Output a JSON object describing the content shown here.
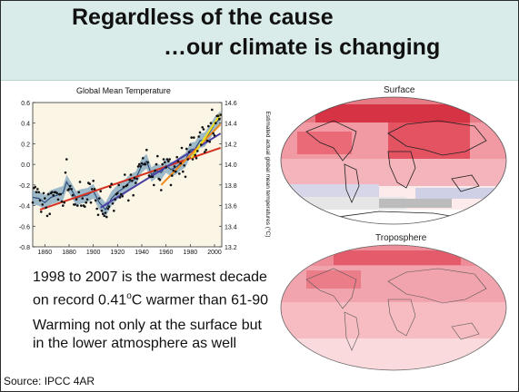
{
  "slide": {
    "title_line1": "Regardless of the cause",
    "title_line2": "…our climate is changing",
    "body_lines": [
      "1998 to 2007 is the warmest decade",
      "on record 0.41",
      "o",
      "C warmer than 61-90",
      "Warming not only at the surface but",
      "in the lower atmosphere as well"
    ],
    "source": "Source: IPCC 4AR",
    "map_surface_label": "Surface",
    "map_troposphere_label": "Troposphere"
  },
  "chart_data": {
    "type": "line",
    "title": "Global Mean Temperature",
    "xlabel": "",
    "ylabel_left": "",
    "ylabel_right": "Estimated actual global mean temperatures (°C)",
    "xlim": [
      1850,
      2006
    ],
    "ylim": [
      -0.8,
      0.6
    ],
    "x_ticks": [
      1860,
      1880,
      1900,
      1920,
      1940,
      1960,
      1980,
      2000
    ],
    "y_ticks_left": [
      "0.6",
      "0.4",
      "0.2",
      "0.0",
      "-0.2",
      "-0.4",
      "-0.6",
      "-0.8"
    ],
    "y_ticks_right": [
      "14.6",
      "14.4",
      "14.2",
      "14.0",
      "13.8",
      "13.6",
      "13.4",
      "13.2"
    ],
    "band_color": "#7fa4be",
    "annual_points": [
      [
        1850,
        -0.37
      ],
      [
        1851,
        -0.23
      ],
      [
        1852,
        -0.22
      ],
      [
        1853,
        -0.27
      ],
      [
        1854,
        -0.24
      ],
      [
        1855,
        -0.27
      ],
      [
        1856,
        -0.35
      ],
      [
        1857,
        -0.46
      ],
      [
        1858,
        -0.39
      ],
      [
        1859,
        -0.28
      ],
      [
        1860,
        -0.33
      ],
      [
        1861,
        -0.42
      ],
      [
        1862,
        -0.5
      ],
      [
        1863,
        -0.29
      ],
      [
        1864,
        -0.48
      ],
      [
        1865,
        -0.28
      ],
      [
        1866,
        -0.27
      ],
      [
        1867,
        -0.3
      ],
      [
        1868,
        -0.27
      ],
      [
        1869,
        -0.27
      ],
      [
        1870,
        -0.28
      ],
      [
        1871,
        -0.34
      ],
      [
        1872,
        -0.29
      ],
      [
        1873,
        -0.29
      ],
      [
        1874,
        -0.36
      ],
      [
        1875,
        -0.4
      ],
      [
        1876,
        -0.37
      ],
      [
        1877,
        -0.08
      ],
      [
        1878,
        0.05
      ],
      [
        1879,
        -0.25
      ],
      [
        1880,
        -0.24
      ],
      [
        1881,
        -0.21
      ],
      [
        1882,
        -0.24
      ],
      [
        1883,
        -0.3
      ],
      [
        1884,
        -0.39
      ],
      [
        1885,
        -0.39
      ],
      [
        1886,
        -0.34
      ],
      [
        1887,
        -0.4
      ],
      [
        1888,
        -0.27
      ],
      [
        1889,
        -0.17
      ],
      [
        1890,
        -0.4
      ],
      [
        1891,
        -0.33
      ],
      [
        1892,
        -0.4
      ],
      [
        1893,
        -0.41
      ],
      [
        1894,
        -0.37
      ],
      [
        1895,
        -0.34
      ],
      [
        1896,
        -0.18
      ],
      [
        1897,
        -0.19
      ],
      [
        1898,
        -0.37
      ],
      [
        1899,
        -0.24
      ],
      [
        1900,
        -0.16
      ],
      [
        1901,
        -0.24
      ],
      [
        1902,
        -0.35
      ],
      [
        1903,
        -0.43
      ],
      [
        1904,
        -0.49
      ],
      [
        1905,
        -0.33
      ],
      [
        1906,
        -0.26
      ],
      [
        1907,
        -0.45
      ],
      [
        1908,
        -0.48
      ],
      [
        1909,
        -0.5
      ],
      [
        1910,
        -0.47
      ],
      [
        1911,
        -0.51
      ],
      [
        1912,
        -0.43
      ],
      [
        1913,
        -0.41
      ],
      [
        1914,
        -0.22
      ],
      [
        1915,
        -0.19
      ],
      [
        1916,
        -0.38
      ],
      [
        1917,
        -0.45
      ],
      [
        1918,
        -0.34
      ],
      [
        1919,
        -0.29
      ],
      [
        1920,
        -0.28
      ],
      [
        1921,
        -0.2
      ],
      [
        1922,
        -0.32
      ],
      [
        1923,
        -0.29
      ],
      [
        1924,
        -0.31
      ],
      [
        1925,
        -0.22
      ],
      [
        1926,
        -0.1
      ],
      [
        1927,
        -0.21
      ],
      [
        1928,
        -0.2
      ],
      [
        1929,
        -0.35
      ],
      [
        1930,
        -0.15
      ],
      [
        1931,
        -0.1
      ],
      [
        1932,
        -0.16
      ],
      [
        1933,
        -0.3
      ],
      [
        1934,
        -0.13
      ],
      [
        1935,
        -0.18
      ],
      [
        1936,
        -0.14
      ],
      [
        1937,
        -0.02
      ],
      [
        1938,
        0.0
      ],
      [
        1939,
        -0.02
      ],
      [
        1940,
        0.01
      ],
      [
        1941,
        0.06
      ],
      [
        1942,
        0.0
      ],
      [
        1943,
        0.0
      ],
      [
        1944,
        0.14
      ],
      [
        1945,
        0.02
      ],
      [
        1946,
        -0.11
      ],
      [
        1947,
        -0.12
      ],
      [
        1948,
        -0.12
      ],
      [
        1949,
        -0.12
      ],
      [
        1950,
        -0.2
      ],
      [
        1951,
        -0.06
      ],
      [
        1952,
        0.0
      ],
      [
        1953,
        0.08
      ],
      [
        1954,
        -0.14
      ],
      [
        1955,
        -0.15
      ],
      [
        1956,
        -0.25
      ],
      [
        1957,
        0.0
      ],
      [
        1958,
        0.05
      ],
      [
        1959,
        0.02
      ],
      [
        1960,
        -0.03
      ],
      [
        1961,
        0.05
      ],
      [
        1962,
        0.03
      ],
      [
        1963,
        0.05
      ],
      [
        1964,
        -0.2
      ],
      [
        1965,
        -0.11
      ],
      [
        1966,
        -0.06
      ],
      [
        1967,
        -0.02
      ],
      [
        1968,
        -0.07
      ],
      [
        1969,
        0.07
      ],
      [
        1970,
        0.03
      ],
      [
        1971,
        -0.09
      ],
      [
        1972,
        0.01
      ],
      [
        1973,
        0.16
      ],
      [
        1974,
        -0.07
      ],
      [
        1975,
        -0.01
      ],
      [
        1976,
        -0.12
      ],
      [
        1977,
        0.15
      ],
      [
        1978,
        0.05
      ],
      [
        1979,
        0.12
      ],
      [
        1980,
        0.19
      ],
      [
        1981,
        0.26
      ],
      [
        1982,
        0.05
      ],
      [
        1983,
        0.26
      ],
      [
        1984,
        0.09
      ],
      [
        1985,
        0.06
      ],
      [
        1986,
        0.13
      ],
      [
        1987,
        0.27
      ],
      [
        1988,
        0.31
      ],
      [
        1989,
        0.19
      ],
      [
        1990,
        0.36
      ],
      [
        1991,
        0.34
      ],
      [
        1992,
        0.12
      ],
      [
        1993,
        0.14
      ],
      [
        1994,
        0.23
      ],
      [
        1995,
        0.37
      ],
      [
        1996,
        0.22
      ],
      [
        1997,
        0.4
      ],
      [
        1998,
        0.53
      ],
      [
        1999,
        0.3
      ],
      [
        2000,
        0.28
      ],
      [
        2001,
        0.4
      ],
      [
        2002,
        0.47
      ],
      [
        2003,
        0.47
      ],
      [
        2004,
        0.44
      ],
      [
        2005,
        0.48
      ]
    ],
    "smoothed": [
      [
        1850,
        -0.32
      ],
      [
        1855,
        -0.33
      ],
      [
        1860,
        -0.37
      ],
      [
        1865,
        -0.32
      ],
      [
        1870,
        -0.3
      ],
      [
        1875,
        -0.28
      ],
      [
        1878,
        -0.17
      ],
      [
        1882,
        -0.25
      ],
      [
        1886,
        -0.33
      ],
      [
        1890,
        -0.31
      ],
      [
        1895,
        -0.3
      ],
      [
        1900,
        -0.26
      ],
      [
        1905,
        -0.37
      ],
      [
        1910,
        -0.44
      ],
      [
        1915,
        -0.33
      ],
      [
        1920,
        -0.27
      ],
      [
        1925,
        -0.23
      ],
      [
        1930,
        -0.17
      ],
      [
        1935,
        -0.14
      ],
      [
        1940,
        -0.01
      ],
      [
        1944,
        0.03
      ],
      [
        1948,
        -0.1
      ],
      [
        1952,
        -0.06
      ],
      [
        1956,
        -0.08
      ],
      [
        1960,
        -0.01
      ],
      [
        1964,
        -0.05
      ],
      [
        1968,
        -0.03
      ],
      [
        1972,
        0.01
      ],
      [
        1976,
        0.04
      ],
      [
        1980,
        0.14
      ],
      [
        1984,
        0.15
      ],
      [
        1988,
        0.23
      ],
      [
        1992,
        0.24
      ],
      [
        1996,
        0.31
      ],
      [
        2000,
        0.39
      ],
      [
        2005,
        0.45
      ]
    ],
    "band_halfwidth": 0.07,
    "trend_lines": [
      {
        "period": "1856-2005",
        "x": [
          1856,
          2005
        ],
        "y": [
          -0.44,
          0.16
        ],
        "color": "#d7301f"
      },
      {
        "period": "1906-2005",
        "x": [
          1906,
          2005
        ],
        "y": [
          -0.42,
          0.3
        ],
        "color": "#4a3fa2"
      },
      {
        "period": "1956-2005",
        "x": [
          1956,
          2005
        ],
        "y": [
          -0.2,
          0.39
        ],
        "color": "#ee8a1b"
      },
      {
        "period": "1981-2005",
        "x": [
          1981,
          2005
        ],
        "y": [
          0.06,
          0.49
        ],
        "color": "#f1e21c"
      }
    ]
  }
}
